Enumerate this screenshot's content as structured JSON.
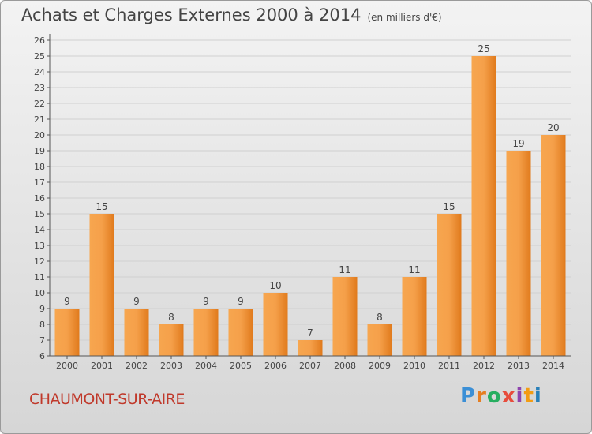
{
  "header": {
    "title": "Achats et Charges Externes 2000 à 2014",
    "unit": "(en milliers d'€)"
  },
  "commune": "CHAUMONT-SUR-AIRE",
  "logo": {
    "letters": [
      "P",
      "r",
      "o",
      "x",
      "i",
      "t",
      "i"
    ],
    "colors": [
      "#3b8fd6",
      "#e67e22",
      "#27ae60",
      "#e74c3c",
      "#8e44ad",
      "#f39c12",
      "#2980b9"
    ]
  },
  "colors": {
    "bar_top": "#f7a64f",
    "bar_bottom": "#e07a1c",
    "commune_text": "#c0392b"
  },
  "chart_data": {
    "type": "bar",
    "title": "Achats et Charges Externes 2000 à 2014",
    "xlabel": "",
    "ylabel": "",
    "categories": [
      "2000",
      "2001",
      "2002",
      "2003",
      "2004",
      "2005",
      "2006",
      "2007",
      "2008",
      "2009",
      "2010",
      "2011",
      "2012",
      "2013",
      "2014"
    ],
    "values": [
      9,
      15,
      9,
      8,
      9,
      9,
      10,
      7,
      11,
      8,
      11,
      15,
      25,
      19,
      20
    ],
    "ylim": [
      6,
      26
    ],
    "yticks": [
      6,
      7,
      8,
      9,
      10,
      11,
      12,
      13,
      14,
      15,
      16,
      17,
      18,
      19,
      20,
      21,
      22,
      23,
      24,
      25,
      26
    ],
    "grid": true
  }
}
